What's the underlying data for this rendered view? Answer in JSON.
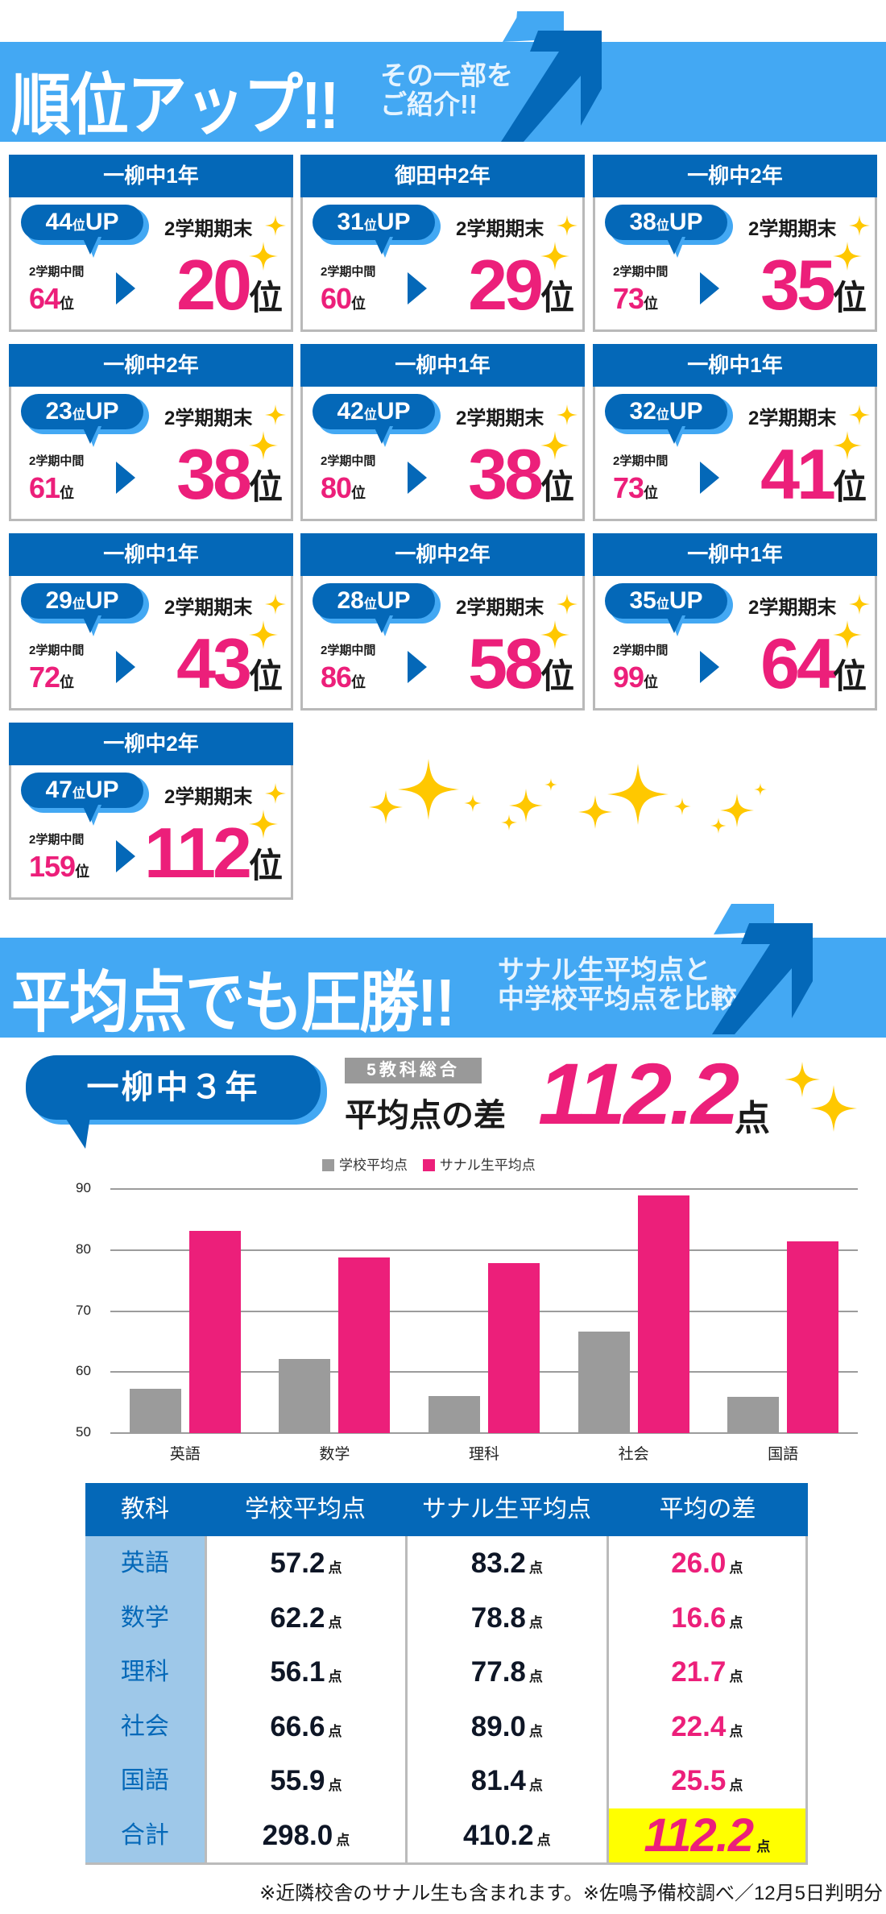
{
  "banner1": {
    "title": "順位アップ!!",
    "subtitle_line1": "その一部を",
    "subtitle_line2": "ご紹介!!",
    "icon": "up-arrow-icon"
  },
  "labels": {
    "up_unit": "位",
    "up_suffix": "UP",
    "term_final": "2学期期末",
    "term_mid": "2学期中間",
    "rank_unit": "位"
  },
  "cards": [
    {
      "school": "一柳中1年",
      "up": "44",
      "mid": "64",
      "final": "20"
    },
    {
      "school": "御田中2年",
      "up": "31",
      "mid": "60",
      "final": "29"
    },
    {
      "school": "一柳中2年",
      "up": "38",
      "mid": "73",
      "final": "35"
    },
    {
      "school": "一柳中2年",
      "up": "23",
      "mid": "61",
      "final": "38"
    },
    {
      "school": "一柳中1年",
      "up": "42",
      "mid": "80",
      "final": "38"
    },
    {
      "school": "一柳中1年",
      "up": "32",
      "mid": "73",
      "final": "41"
    },
    {
      "school": "一柳中1年",
      "up": "29",
      "mid": "72",
      "final": "43"
    },
    {
      "school": "一柳中2年",
      "up": "28",
      "mid": "86",
      "final": "58"
    },
    {
      "school": "一柳中1年",
      "up": "35",
      "mid": "99",
      "final": "64"
    },
    {
      "school": "一柳中2年",
      "up": "47",
      "mid": "159",
      "final": "112"
    }
  ],
  "banner2": {
    "title": "平均点でも圧勝!!",
    "subtitle_line1": "サナル生平均点と",
    "subtitle_line2": "中学校平均点を比較",
    "icon": "up-arrow-icon"
  },
  "summary": {
    "school": "一柳中３年",
    "badge": "5教科総合",
    "label": "平均点の差",
    "value": "112.2",
    "unit": "点"
  },
  "colors": {
    "banner_bg": "#43a8f3",
    "navy": "#0468b8",
    "pink": "#ec1f7a",
    "gold": "#ffc800",
    "gray_bar": "#9b9b9b",
    "highlight": "#ffff00"
  },
  "chart_data": {
    "type": "bar",
    "title": "",
    "categories": [
      "英語",
      "数学",
      "理科",
      "社会",
      "国語"
    ],
    "series": [
      {
        "name": "学校平均点",
        "color": "#9b9b9b",
        "values": [
          57.2,
          62.2,
          56.1,
          66.6,
          55.9
        ]
      },
      {
        "name": "サナル生平均点",
        "color": "#ec1f7a",
        "values": [
          83.2,
          78.8,
          77.8,
          89.0,
          81.4
        ]
      }
    ],
    "xlabel": "",
    "ylabel": "",
    "ylim": [
      50,
      90
    ],
    "yticks": [
      "90",
      "80",
      "70",
      "60",
      "50"
    ],
    "grid": true,
    "legend_position": "top"
  },
  "table": {
    "headers": [
      "教科",
      "学校平均点",
      "サナル生平均点",
      "平均の差"
    ],
    "unit": "点",
    "rows": [
      {
        "subject": "英語",
        "school": "57.2",
        "sanaru": "83.2",
        "diff": "26.0"
      },
      {
        "subject": "数学",
        "school": "62.2",
        "sanaru": "78.8",
        "diff": "16.6"
      },
      {
        "subject": "理科",
        "school": "56.1",
        "sanaru": "77.8",
        "diff": "21.7"
      },
      {
        "subject": "社会",
        "school": "66.6",
        "sanaru": "89.0",
        "diff": "22.4"
      },
      {
        "subject": "国語",
        "school": "55.9",
        "sanaru": "81.4",
        "diff": "25.5"
      },
      {
        "subject": "合計",
        "school": "298.0",
        "sanaru": "410.2",
        "diff": "112.2"
      }
    ]
  },
  "footnote": "※近隣校舎のサナル生も含まれます。※佐鳴予備校調べ／12月5日判明分"
}
